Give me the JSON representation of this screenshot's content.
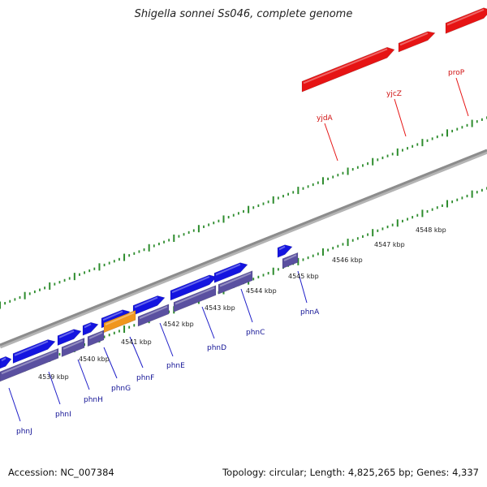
{
  "title": "Shigella sonnei Ss046, complete genome",
  "accession": "Accession: NC_007384",
  "stats": "Topology: circular; Length: 4,825,265 bp; Genes: 4,337",
  "colors": {
    "forward_gene": "#1414e0",
    "reverse_gene": "#5a50a0",
    "highlight_gene": "#f0961e",
    "rna_gene": "#e61414",
    "backbone": "#8c8c8c",
    "tick": "#2d8c2d",
    "forward_label": "#d01010",
    "reverse_label": "#141496"
  },
  "kbp_labels": [
    "4539 kbp",
    "4540 kbp",
    "4541 kbp",
    "4542 kbp",
    "4543 kbp",
    "4544 kbp",
    "4545 kbp",
    "4546 kbp",
    "4547 kbp",
    "4548 kbp"
  ],
  "red_gene_labels": [
    "yjdA",
    "yjcZ",
    "proP"
  ],
  "blue_gene_labels": [
    "phnJ",
    "phnI",
    "phnH",
    "phnG",
    "phnF",
    "phnE",
    "phnD",
    "phnC",
    "phnA"
  ]
}
